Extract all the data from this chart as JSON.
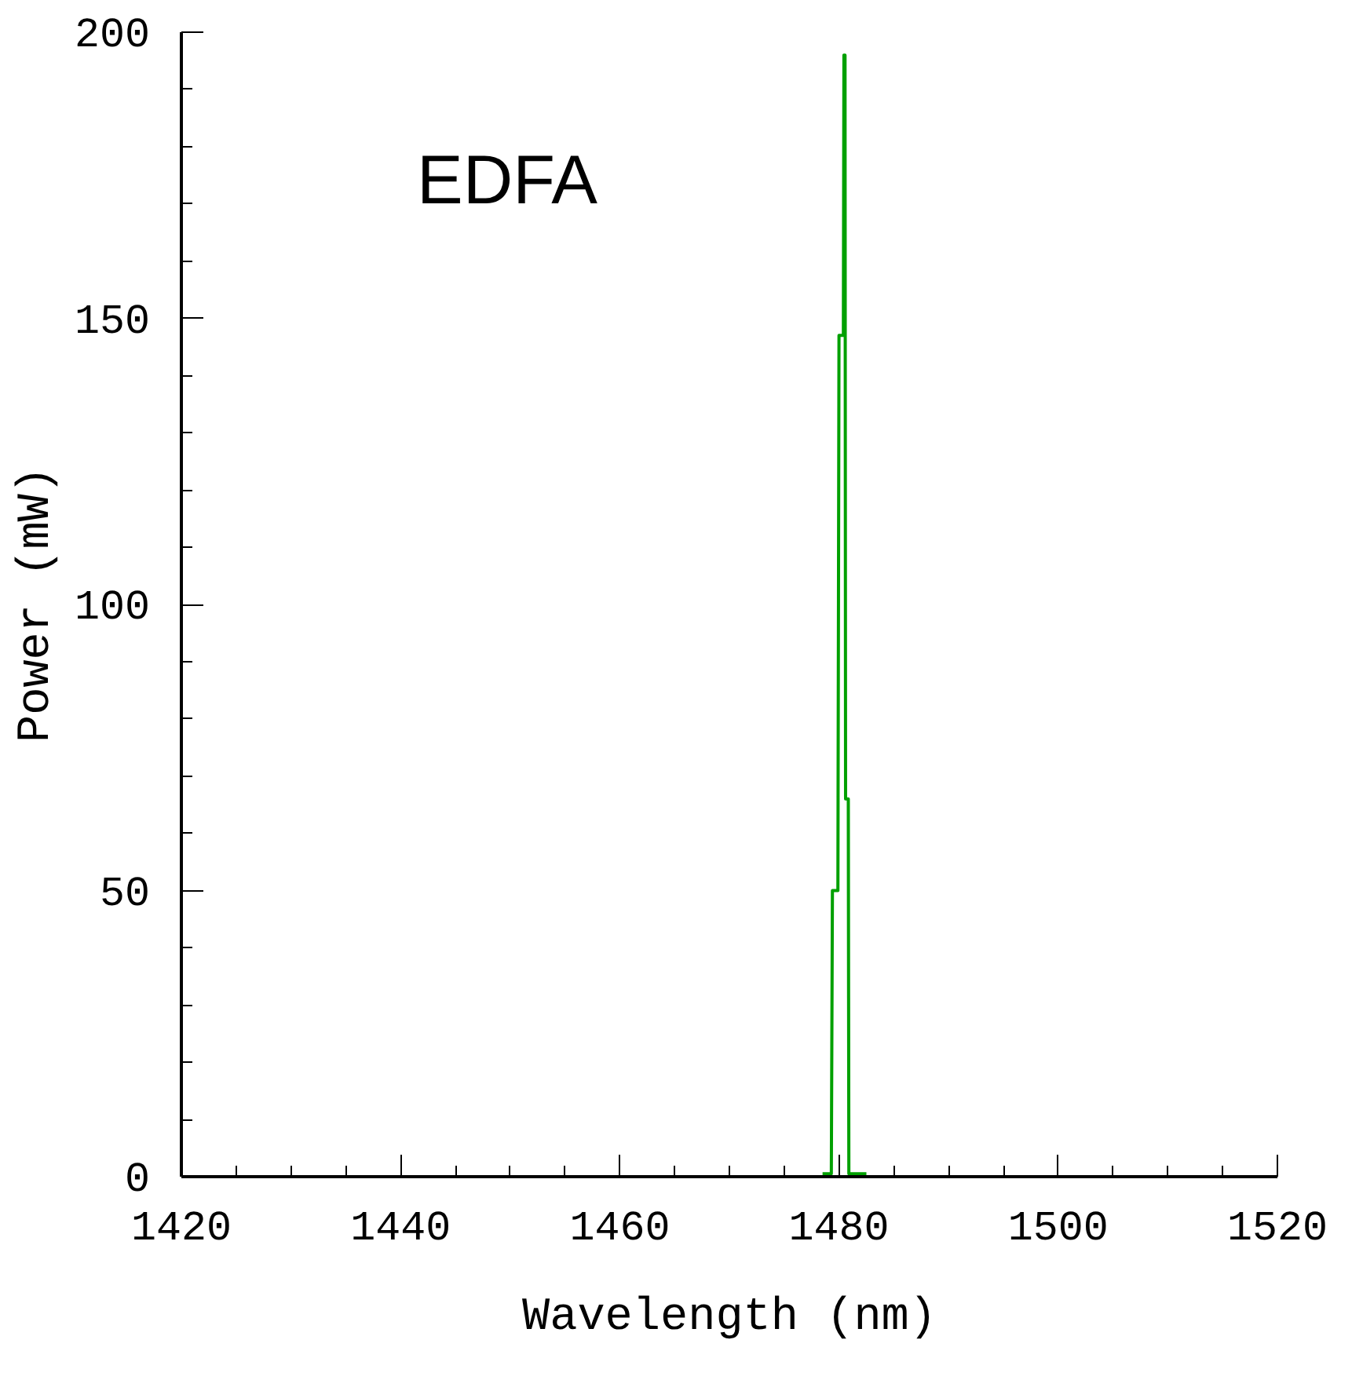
{
  "chart_data": {
    "type": "line",
    "xlabel": "Wavelength (nm)",
    "ylabel": "Power (mW)",
    "annotations": [
      "EDFA"
    ],
    "series": [
      {
        "color": "#00a000",
        "x": [
          1478.5,
          1479.3,
          1479.4,
          1479.9,
          1480.0,
          1480.4,
          1480.45,
          1480.55,
          1480.6,
          1480.85,
          1480.9,
          1482.5
        ],
        "values": [
          0.5,
          0.5,
          50,
          50,
          147,
          147,
          196,
          196,
          66,
          66,
          0.5,
          0.5
        ]
      }
    ],
    "xlim": [
      1420,
      1520
    ],
    "ylim": [
      0,
      200
    ],
    "xticks": [
      1420,
      1440,
      1460,
      1480,
      1500,
      1520
    ],
    "yticks": [
      0,
      50,
      100,
      150,
      200
    ],
    "grid": false,
    "marker": "none",
    "line_style": "solid"
  }
}
